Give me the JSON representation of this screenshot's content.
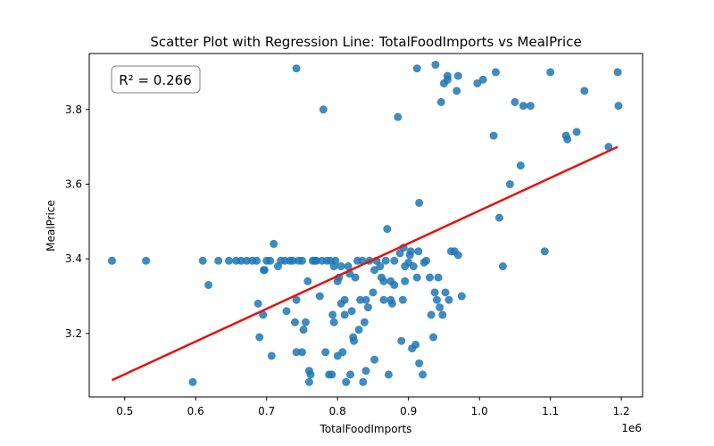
{
  "chart_data": {
    "type": "scatter",
    "title": "Scatter Plot with Regression Line: TotalFoodImports vs MealPrice",
    "xlabel": "TotalFoodImports",
    "ylabel": "MealPrice",
    "x_offset_label": "1e6",
    "xlim": [
      0.45,
      1.23
    ],
    "ylim": [
      3.03,
      3.95
    ],
    "x_ticks": [
      0.5,
      0.6,
      0.7,
      0.8,
      0.9,
      1.0,
      1.1,
      1.2
    ],
    "x_tick_labels": [
      "0.5",
      "0.6",
      "0.7",
      "0.8",
      "0.9",
      "1.0",
      "1.1",
      "1.2"
    ],
    "y_ticks": [
      3.2,
      3.4,
      3.6,
      3.8
    ],
    "y_tick_labels": [
      "3.2",
      "3.4",
      "3.6",
      "3.8"
    ],
    "annotation": "R² = 0.266",
    "grid": false,
    "colors": {
      "points": "#1f77b4",
      "regression": "#e8120c"
    },
    "regression_line": {
      "x": [
        0.482,
        1.195
      ],
      "y": [
        3.075,
        3.7
      ]
    },
    "points": [
      [
        0.482,
        3.395
      ],
      [
        0.53,
        3.395
      ],
      [
        0.596,
        3.07
      ],
      [
        0.61,
        3.395
      ],
      [
        0.618,
        3.33
      ],
      [
        0.632,
        3.395
      ],
      [
        0.647,
        3.395
      ],
      [
        0.657,
        3.395
      ],
      [
        0.664,
        3.395
      ],
      [
        0.672,
        3.395
      ],
      [
        0.68,
        3.395
      ],
      [
        0.686,
        3.395
      ],
      [
        0.688,
        3.28
      ],
      [
        0.69,
        3.19
      ],
      [
        0.695,
        3.25
      ],
      [
        0.696,
        3.37
      ],
      [
        0.697,
        3.37
      ],
      [
        0.7,
        3.395
      ],
      [
        0.705,
        3.395
      ],
      [
        0.707,
        3.14
      ],
      [
        0.71,
        3.44
      ],
      [
        0.716,
        3.38
      ],
      [
        0.72,
        3.395
      ],
      [
        0.726,
        3.395
      ],
      [
        0.728,
        3.26
      ],
      [
        0.733,
        3.395
      ],
      [
        0.737,
        3.395
      ],
      [
        0.74,
        3.23
      ],
      [
        0.742,
        3.15
      ],
      [
        0.742,
        3.29
      ],
      [
        0.742,
        3.91
      ],
      [
        0.745,
        3.395
      ],
      [
        0.75,
        3.15
      ],
      [
        0.75,
        3.395
      ],
      [
        0.752,
        3.21
      ],
      [
        0.755,
        3.23
      ],
      [
        0.758,
        3.34
      ],
      [
        0.76,
        3.1
      ],
      [
        0.76,
        3.07
      ],
      [
        0.762,
        3.09
      ],
      [
        0.765,
        3.395
      ],
      [
        0.768,
        3.395
      ],
      [
        0.77,
        3.395
      ],
      [
        0.775,
        3.3
      ],
      [
        0.778,
        3.395
      ],
      [
        0.78,
        3.8
      ],
      [
        0.783,
        3.15
      ],
      [
        0.785,
        3.395
      ],
      [
        0.788,
        3.09
      ],
      [
        0.79,
        3.395
      ],
      [
        0.792,
        3.09
      ],
      [
        0.793,
        3.25
      ],
      [
        0.795,
        3.23
      ],
      [
        0.795,
        3.38
      ],
      [
        0.797,
        3.395
      ],
      [
        0.8,
        3.14
      ],
      [
        0.8,
        3.34
      ],
      [
        0.802,
        3.35
      ],
      [
        0.805,
        3.38
      ],
      [
        0.805,
        3.28
      ],
      [
        0.807,
        3.15
      ],
      [
        0.81,
        3.29
      ],
      [
        0.81,
        3.25
      ],
      [
        0.812,
        3.07
      ],
      [
        0.815,
        3.38
      ],
      [
        0.817,
        3.36
      ],
      [
        0.818,
        3.09
      ],
      [
        0.82,
        3.26
      ],
      [
        0.822,
        3.19
      ],
      [
        0.823,
        3.18
      ],
      [
        0.825,
        3.35
      ],
      [
        0.828,
        3.395
      ],
      [
        0.83,
        3.21
      ],
      [
        0.832,
        3.29
      ],
      [
        0.835,
        3.395
      ],
      [
        0.836,
        3.07
      ],
      [
        0.838,
        3.23
      ],
      [
        0.84,
        3.29
      ],
      [
        0.84,
        3.1
      ],
      [
        0.843,
        3.27
      ],
      [
        0.845,
        3.395
      ],
      [
        0.85,
        3.31
      ],
      [
        0.852,
        3.13
      ],
      [
        0.852,
        3.37
      ],
      [
        0.855,
        3.395
      ],
      [
        0.86,
        3.38
      ],
      [
        0.862,
        3.35
      ],
      [
        0.865,
        3.29
      ],
      [
        0.865,
        3.34
      ],
      [
        0.868,
        3.395
      ],
      [
        0.87,
        3.48
      ],
      [
        0.872,
        3.09
      ],
      [
        0.875,
        3.29
      ],
      [
        0.875,
        3.34
      ],
      [
        0.877,
        3.28
      ],
      [
        0.88,
        3.33
      ],
      [
        0.88,
        3.395
      ],
      [
        0.885,
        3.78
      ],
      [
        0.888,
        3.415
      ],
      [
        0.89,
        3.18
      ],
      [
        0.892,
        3.29
      ],
      [
        0.893,
        3.43
      ],
      [
        0.895,
        3.34
      ],
      [
        0.895,
        3.38
      ],
      [
        0.9,
        3.39
      ],
      [
        0.902,
        3.41
      ],
      [
        0.903,
        3.42
      ],
      [
        0.905,
        3.16
      ],
      [
        0.907,
        3.38
      ],
      [
        0.91,
        3.17
      ],
      [
        0.912,
        3.91
      ],
      [
        0.912,
        3.35
      ],
      [
        0.914,
        3.42
      ],
      [
        0.915,
        3.55
      ],
      [
        0.915,
        3.12
      ],
      [
        0.92,
        3.09
      ],
      [
        0.922,
        3.39
      ],
      [
        0.925,
        3.395
      ],
      [
        0.93,
        3.35
      ],
      [
        0.932,
        3.25
      ],
      [
        0.935,
        3.19
      ],
      [
        0.937,
        3.31
      ],
      [
        0.938,
        3.92
      ],
      [
        0.94,
        3.29
      ],
      [
        0.942,
        3.35
      ],
      [
        0.944,
        3.27
      ],
      [
        0.946,
        3.82
      ],
      [
        0.948,
        3.25
      ],
      [
        0.95,
        3.87
      ],
      [
        0.952,
        3.31
      ],
      [
        0.955,
        3.89
      ],
      [
        0.955,
        3.88
      ],
      [
        0.957,
        3.29
      ],
      [
        0.96,
        3.42
      ],
      [
        0.965,
        3.42
      ],
      [
        0.968,
        3.85
      ],
      [
        0.97,
        3.89
      ],
      [
        0.97,
        3.41
      ],
      [
        0.975,
        3.3
      ],
      [
        0.997,
        3.87
      ],
      [
        1.005,
        3.88
      ],
      [
        1.02,
        3.73
      ],
      [
        1.023,
        3.9
      ],
      [
        1.028,
        3.51
      ],
      [
        1.033,
        3.38
      ],
      [
        1.043,
        3.6
      ],
      [
        1.05,
        3.82
      ],
      [
        1.058,
        3.65
      ],
      [
        1.062,
        3.81
      ],
      [
        1.072,
        3.81
      ],
      [
        1.092,
        3.42
      ],
      [
        1.1,
        3.9
      ],
      [
        1.122,
        3.73
      ],
      [
        1.124,
        3.72
      ],
      [
        1.137,
        3.74
      ],
      [
        1.148,
        3.85
      ],
      [
        1.182,
        3.7
      ],
      [
        1.195,
        3.9
      ],
      [
        1.196,
        3.81
      ]
    ]
  }
}
